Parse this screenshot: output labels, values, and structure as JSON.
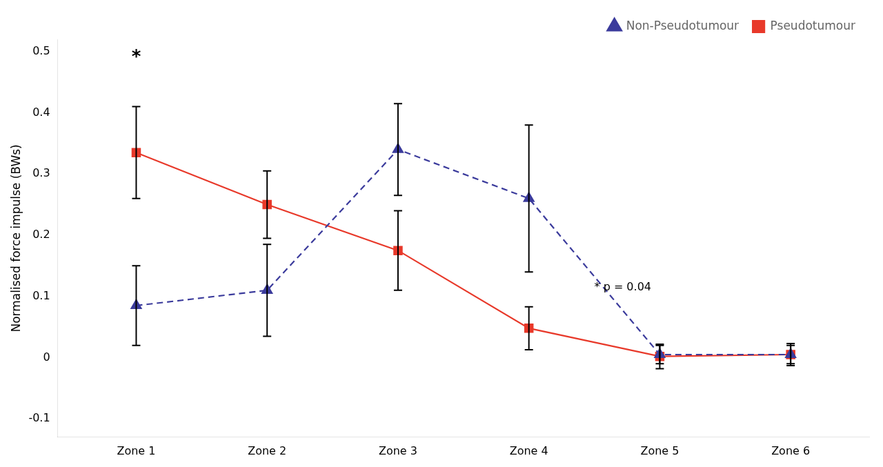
{
  "chart_data": {
    "type": "line",
    "x": [
      1,
      2,
      3,
      4,
      5,
      6
    ],
    "xlim": [
      0.4,
      6.6
    ],
    "xticks": [
      {
        "value": 1,
        "label": "Zone 1"
      },
      {
        "value": 2,
        "label": "Zone 2"
      },
      {
        "value": 3,
        "label": "Zone 3"
      },
      {
        "value": 4,
        "label": "Zone 4"
      },
      {
        "value": 5,
        "label": "Zone 5"
      },
      {
        "value": 6,
        "label": "Zone 6"
      }
    ],
    "ylabel": "Normalised force impulse (BWs)",
    "ylim": [
      -0.13,
      0.52
    ],
    "yticks": [
      -0.1,
      0,
      0.1,
      0.2,
      0.3,
      0.4,
      0.5
    ],
    "grid": false,
    "legend": "upper right",
    "series": [
      {
        "name": "Non-Pseudotumour",
        "color": "#3B3B9C",
        "values": [
          0.085,
          0.11,
          0.34,
          0.26,
          0.005,
          0.005
        ],
        "errors": [
          0.065,
          0.075,
          0.075,
          0.12,
          0.015,
          0.015
        ],
        "marker": "triangle",
        "line_style": "dashed"
      },
      {
        "name": "Pseudotumour",
        "color": "#E8392A",
        "values": [
          0.335,
          0.25,
          0.175,
          0.048,
          0.002,
          0.005
        ],
        "errors": [
          0.075,
          0.055,
          0.065,
          0.035,
          0.02,
          0.018
        ],
        "marker": "square",
        "line_style": "solid"
      }
    ],
    "annotations": [
      {
        "text": "*",
        "x": 1,
        "y": 0.475
      },
      {
        "text": "* p = 0.04",
        "x": 4.5,
        "y": 0.115
      }
    ]
  }
}
